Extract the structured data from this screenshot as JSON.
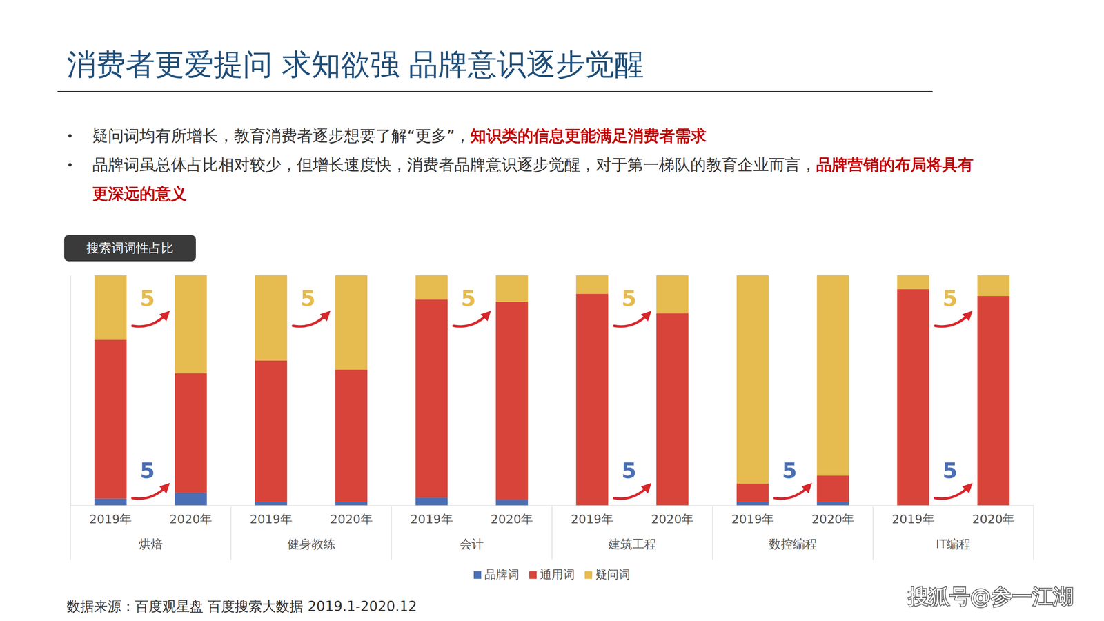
{
  "header": {
    "title": "消费者更爱提问 求知欲强 品牌意识逐步觉醒"
  },
  "bullets": [
    {
      "text": "疑问词均有所增长，教育消费者逐步想要了解“更多”，",
      "highlight": "知识类的信息更能满足消费者需求"
    },
    {
      "text": "品牌词虽总体占比相对较少，但增长速度快，消费者品牌意识逐步觉醒，对于第一梯队的教育企业而言，",
      "highlight": "品牌营销的布局将具有更深远的意义"
    }
  ],
  "chart_data": {
    "type": "bar",
    "title": "搜索词词性占比",
    "stacked": true,
    "grid": false,
    "legend": "bottom",
    "data_labels": false,
    "tick_labels": "x",
    "categories": [
      "2019年",
      "2020年",
      "2019年",
      "2020年",
      "2019年",
      "2020年",
      "2019年",
      "2020年",
      "2019年",
      "2020年",
      "2019年",
      "2020年"
    ],
    "group_labels": [
      "烘焙",
      "健身教练",
      "会计",
      "建筑工程",
      "数控编程",
      "IT编程"
    ],
    "ylim": [
      0,
      100
    ],
    "series": [
      {
        "name": "品牌词",
        "color": "#4a6fb5",
        "values": [
          3,
          5.5,
          1.5,
          1.5,
          3.5,
          2.5,
          0,
          0,
          1.5,
          1.5,
          0,
          0
        ]
      },
      {
        "name": "通用词",
        "color": "#d9443a",
        "values": [
          69,
          52,
          61.5,
          57.5,
          86,
          86,
          92,
          83.5,
          8,
          11.5,
          94,
          91
        ]
      },
      {
        "name": "疑问词",
        "color": "#e6bb4f",
        "values": [
          28,
          42.5,
          37,
          41,
          10.5,
          11.5,
          8,
          16.5,
          90.5,
          87,
          6,
          9
        ]
      }
    ],
    "annotations": [
      {
        "text": "5",
        "group": "烘焙",
        "series": "疑问词"
      },
      {
        "text": "5",
        "group": "烘焙",
        "series": "品牌词"
      },
      {
        "text": "5",
        "group": "健身教练",
        "series": "疑问词"
      },
      {
        "text": "5",
        "group": "会计",
        "series": "疑问词"
      },
      {
        "text": "5",
        "group": "建筑工程",
        "series": "疑问词"
      },
      {
        "text": "5",
        "group": "建筑工程",
        "series": "品牌词"
      },
      {
        "text": "5",
        "group": "数控编程",
        "series": "品牌词"
      },
      {
        "text": "5",
        "group": "IT编程",
        "series": "疑问词"
      },
      {
        "text": "5",
        "group": "IT编程",
        "series": "品牌词"
      }
    ]
  },
  "source": "数据来源：百度观星盘 百度搜索大数据 2019.1-2020.12",
  "watermark": "搜狐号@参一江湖"
}
